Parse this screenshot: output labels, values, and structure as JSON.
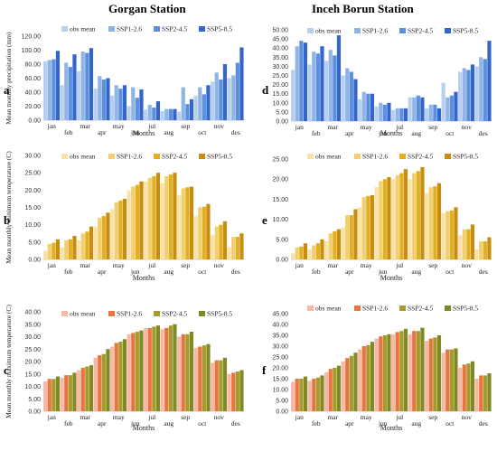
{
  "titles": {
    "left": "Gorgan Station",
    "right": "Inceh Borun Station"
  },
  "legend_labels": [
    "obs mean",
    "SSP1-2.6",
    "SSP2-4.5",
    "SSP5-8.5"
  ],
  "months": [
    "jan",
    "feb",
    "mar",
    "apr",
    "may",
    "jun",
    "jul",
    "aug",
    "sep",
    "oct",
    "nov",
    "des"
  ],
  "xlabel": "Months",
  "chart_data": [
    {
      "id": "a",
      "type": "bar",
      "station": "Gorgan Station",
      "ylabel": "Mean monthly precipitation (mm)",
      "ylim": [
        0,
        120
      ],
      "yticks": [
        0,
        20,
        40,
        60,
        80,
        100,
        120
      ],
      "tick_format": "0.00",
      "colors": [
        "#b8d0ee",
        "#8fb4e6",
        "#5c8fde",
        "#3366cc"
      ],
      "series": [
        {
          "name": "obs mean",
          "values": [
            84,
            50,
            70,
            45,
            35,
            20,
            15,
            13,
            12,
            35,
            55,
            60
          ]
        },
        {
          "name": "SSP1-2.6",
          "values": [
            86,
            82,
            98,
            63,
            50,
            47,
            22,
            16,
            47,
            47,
            68,
            64
          ]
        },
        {
          "name": "SSP2-4.5",
          "values": [
            87,
            76,
            96,
            58,
            45,
            32,
            18,
            16,
            23,
            37,
            58,
            82
          ]
        },
        {
          "name": "SSP5-8.5",
          "values": [
            99,
            94,
            103,
            60,
            50,
            44,
            27,
            16,
            30,
            50,
            80,
            104
          ]
        }
      ]
    },
    {
      "id": "d",
      "type": "bar",
      "station": "Inceh Borun Station",
      "ylabel": "",
      "ylim": [
        0,
        50
      ],
      "yticks": [
        0,
        5,
        10,
        15,
        20,
        25,
        30,
        35,
        40,
        45,
        50
      ],
      "tick_format": "0.00",
      "colors": [
        "#b8d0ee",
        "#8fb4e6",
        "#5c8fde",
        "#3366cc"
      ],
      "series": [
        {
          "name": "obs mean",
          "values": [
            28,
            31,
            33,
            25,
            12,
            8,
            6,
            13,
            7,
            21,
            27,
            30
          ]
        },
        {
          "name": "SSP1-2.6",
          "values": [
            41,
            38,
            39,
            29,
            16,
            10,
            7,
            13,
            9,
            13,
            29,
            35
          ]
        },
        {
          "name": "SSP2-4.5",
          "values": [
            44,
            37,
            36,
            27,
            15,
            9,
            7,
            14,
            9,
            14,
            28,
            34
          ]
        },
        {
          "name": "SSP5-8.5",
          "values": [
            43,
            41,
            47,
            23,
            15,
            10,
            7,
            13,
            7,
            16,
            31,
            44
          ]
        }
      ]
    },
    {
      "id": "b",
      "type": "bar",
      "station": "Gorgan Station",
      "ylabel": "Mean monthly minimum temperature (C)",
      "ylim": [
        0,
        30
      ],
      "yticks": [
        0,
        5,
        10,
        15,
        20,
        25,
        30
      ],
      "tick_format": "0.00",
      "colors": [
        "#f7e3a8",
        "#f2cf6c",
        "#e0b020",
        "#c88d0e"
      ],
      "series": [
        {
          "name": "obs mean",
          "values": [
            2.5,
            3.5,
            5.5,
            9.5,
            14.5,
            20.0,
            22.5,
            22.0,
            18.5,
            12.5,
            7.0,
            3.5
          ]
        },
        {
          "name": "SSP1-2.6",
          "values": [
            4.5,
            5.5,
            7.5,
            12.0,
            16.5,
            21.0,
            23.5,
            24.0,
            20.5,
            15.0,
            9.5,
            6.5
          ]
        },
        {
          "name": "SSP2-4.5",
          "values": [
            4.8,
            5.8,
            8.0,
            12.5,
            17.0,
            21.5,
            24.0,
            24.5,
            20.8,
            15.2,
            10.0,
            6.5
          ]
        },
        {
          "name": "SSP5-8.5",
          "values": [
            5.8,
            6.8,
            9.5,
            13.5,
            17.5,
            22.5,
            25.0,
            25.0,
            21.0,
            16.0,
            11.0,
            7.5
          ]
        }
      ]
    },
    {
      "id": "e",
      "type": "bar",
      "station": "Inceh Borun Station",
      "ylabel": "",
      "ylim": [
        0,
        25
      ],
      "yticks": [
        0,
        5,
        10,
        15,
        20,
        25
      ],
      "tick_format": "0.00",
      "colors": [
        "#f7e3a8",
        "#f2cf6c",
        "#e0b020",
        "#c88d0e"
      ],
      "series": [
        {
          "name": "obs mean",
          "values": [
            1.5,
            2.5,
            4.5,
            8.0,
            13.0,
            18.0,
            20.0,
            20.0,
            16.5,
            11.5,
            6.0,
            2.5
          ]
        },
        {
          "name": "SSP1-2.6",
          "values": [
            3.0,
            3.5,
            6.5,
            11.0,
            15.5,
            19.5,
            21.0,
            21.5,
            18.0,
            12.0,
            7.5,
            4.5
          ]
        },
        {
          "name": "SSP2-4.5",
          "values": [
            3.2,
            4.0,
            7.0,
            11.0,
            15.8,
            20.0,
            21.5,
            22.0,
            18.2,
            12.2,
            7.5,
            4.5
          ]
        },
        {
          "name": "SSP5-8.5",
          "values": [
            4.0,
            5.0,
            7.5,
            12.5,
            16.0,
            20.5,
            22.5,
            23.0,
            19.0,
            13.0,
            8.7,
            5.5
          ]
        }
      ]
    },
    {
      "id": "c",
      "type": "bar",
      "station": "Gorgan Station",
      "ylabel": "Mean monthly maximum temperature (C)",
      "ylim": [
        0,
        40
      ],
      "yticks": [
        0,
        5,
        10,
        15,
        20,
        25,
        30,
        35,
        40
      ],
      "tick_format": "0.00",
      "colors": [
        "#f6b8a8",
        "#e8743e",
        "#a39b2e",
        "#7f8a24"
      ],
      "series": [
        {
          "name": "obs mean",
          "values": [
            12.0,
            13.5,
            16.5,
            21.5,
            26.0,
            31.0,
            33.5,
            33.0,
            30.0,
            25.5,
            19.5,
            15.0
          ]
        },
        {
          "name": "SSP1-2.6",
          "values": [
            13.0,
            14.5,
            17.5,
            22.5,
            27.5,
            31.5,
            33.5,
            33.5,
            31.0,
            26.0,
            20.5,
            15.5
          ]
        },
        {
          "name": "SSP2-4.5",
          "values": [
            13.0,
            14.5,
            18.0,
            23.0,
            28.0,
            32.0,
            34.0,
            34.5,
            31.0,
            26.5,
            20.5,
            16.0
          ]
        },
        {
          "name": "SSP5-8.5",
          "values": [
            14.0,
            15.5,
            18.5,
            25.0,
            29.0,
            32.5,
            34.5,
            35.0,
            32.0,
            27.0,
            21.5,
            16.5
          ]
        }
      ]
    },
    {
      "id": "f",
      "type": "bar",
      "station": "Inceh Borun Station",
      "ylabel": "",
      "ylim": [
        0,
        45
      ],
      "yticks": [
        0,
        5,
        10,
        15,
        20,
        25,
        30,
        35,
        40,
        45
      ],
      "tick_format": "0.00",
      "colors": [
        "#f6b8a8",
        "#e8743e",
        "#a39b2e",
        "#7f8a24"
      ],
      "series": [
        {
          "name": "obs mean",
          "values": [
            13.5,
            14.0,
            18.0,
            23.0,
            28.5,
            33.5,
            35.5,
            35.5,
            32.5,
            27.0,
            20.0,
            15.0
          ]
        },
        {
          "name": "SSP1-2.6",
          "values": [
            15.0,
            15.0,
            19.5,
            24.5,
            30.0,
            34.5,
            36.5,
            37.0,
            33.5,
            28.5,
            21.5,
            16.5
          ]
        },
        {
          "name": "SSP2-4.5",
          "values": [
            15.0,
            15.5,
            20.0,
            25.5,
            30.5,
            35.0,
            37.0,
            37.0,
            34.0,
            28.5,
            22.0,
            16.5
          ]
        },
        {
          "name": "SSP5-8.5",
          "values": [
            16.0,
            16.5,
            21.0,
            27.0,
            32.0,
            35.5,
            38.0,
            38.5,
            35.0,
            29.0,
            23.0,
            17.5
          ]
        }
      ]
    }
  ]
}
